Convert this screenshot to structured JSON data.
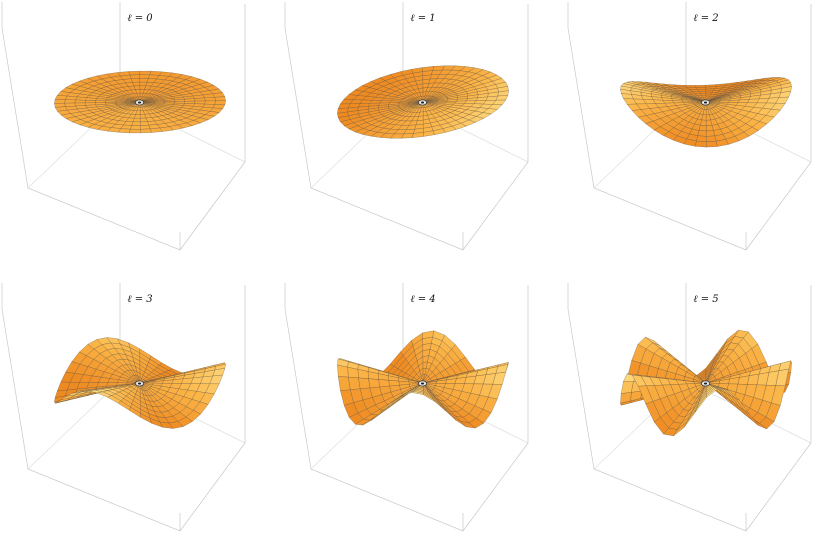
{
  "figure": {
    "panels": [
      {
        "label": "ℓ = 0",
        "l": 0
      },
      {
        "label": "ℓ = 1",
        "l": 1
      },
      {
        "label": "ℓ = 2",
        "l": 2
      },
      {
        "label": "ℓ = 3",
        "l": 3
      },
      {
        "label": "ℓ = 4",
        "l": 4
      },
      {
        "label": "ℓ = 5",
        "l": 5
      }
    ],
    "colors": {
      "surface_dark": "#ee8a22",
      "surface_mid": "#fbb446",
      "surface_light": "#fff5a8",
      "mesh": "#5a4a3a",
      "box": "#c8c8c8"
    }
  }
}
